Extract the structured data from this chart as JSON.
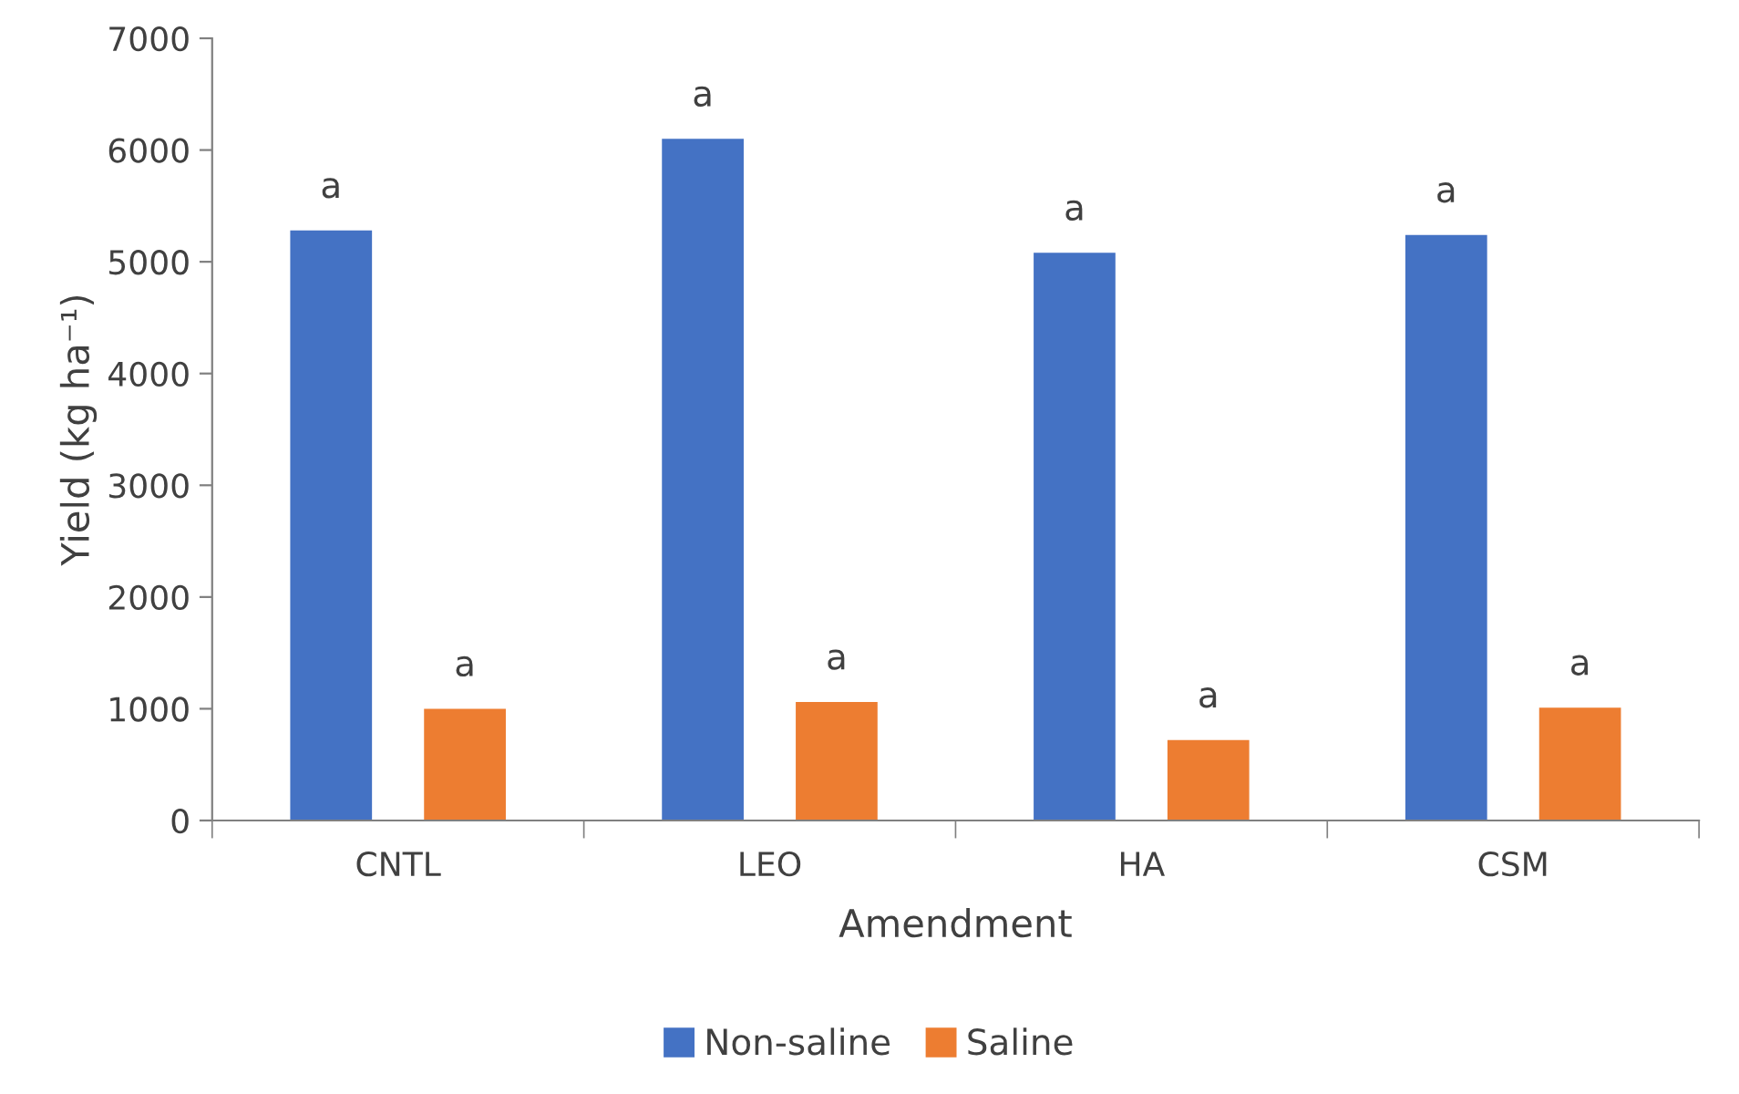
{
  "chart_data": {
    "type": "bar",
    "xlabel": "Amendment",
    "ylabel": "Yield (kg ha⁻¹)",
    "categories": [
      "CNTL",
      "LEO",
      "HA",
      "CSM"
    ],
    "series": [
      {
        "name": "Non-saline",
        "color": "#4472c4",
        "values": [
          5280,
          6100,
          5080,
          5240
        ],
        "value_labels": [
          "a",
          "a",
          "a",
          "a"
        ]
      },
      {
        "name": "Saline",
        "color": "#ed7d31",
        "values": [
          1000,
          1060,
          720,
          1010
        ],
        "value_labels": [
          "a",
          "a",
          "a",
          "a"
        ]
      }
    ],
    "ylim": [
      0,
      7000
    ],
    "yticks": [
      0,
      1000,
      2000,
      3000,
      4000,
      5000,
      6000,
      7000
    ],
    "grid": false,
    "legend": "bottom"
  }
}
